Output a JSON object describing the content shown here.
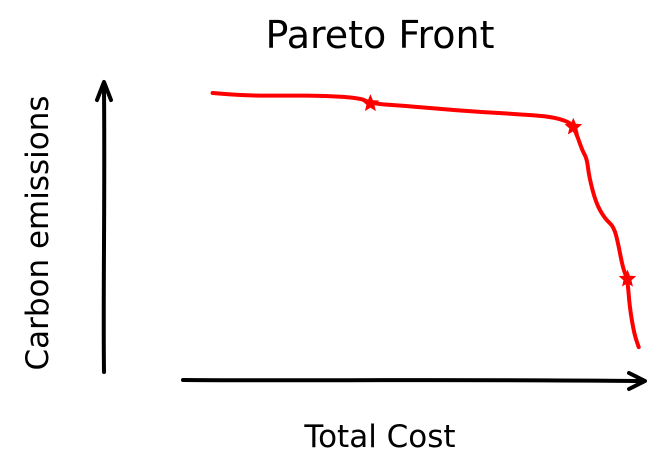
{
  "chart_data": {
    "type": "line",
    "title": "Pareto Front",
    "xlabel": "Total Cost",
    "ylabel": "Carbon emissions",
    "xlim": [
      0,
      100
    ],
    "ylim": [
      0,
      100
    ],
    "ticks_shown": false,
    "grid": false,
    "legend": "none",
    "series": [
      {
        "color": "#ff0000",
        "x": [
          5,
          12,
          22,
          30,
          38,
          40,
          48,
          55,
          62,
          72,
          80,
          84,
          85,
          86,
          87,
          88,
          88.5,
          90,
          92,
          94,
          95,
          96,
          97,
          97.5,
          98.5,
          99.5
        ],
        "y": [
          100,
          99,
          99,
          99,
          98,
          96,
          95,
          94,
          93,
          92,
          91,
          89,
          87,
          83,
          78,
          75,
          68,
          58,
          52,
          49,
          42,
          33,
          29,
          18,
          8,
          3
        ]
      }
    ],
    "markers": [
      {
        "shape": "star",
        "color": "#ff0000",
        "x": 40,
        "y": 96
      },
      {
        "shape": "star",
        "color": "#ff0000",
        "x": 85,
        "y": 87
      },
      {
        "shape": "star",
        "color": "#ff0000",
        "x": 97,
        "y": 29
      }
    ]
  }
}
